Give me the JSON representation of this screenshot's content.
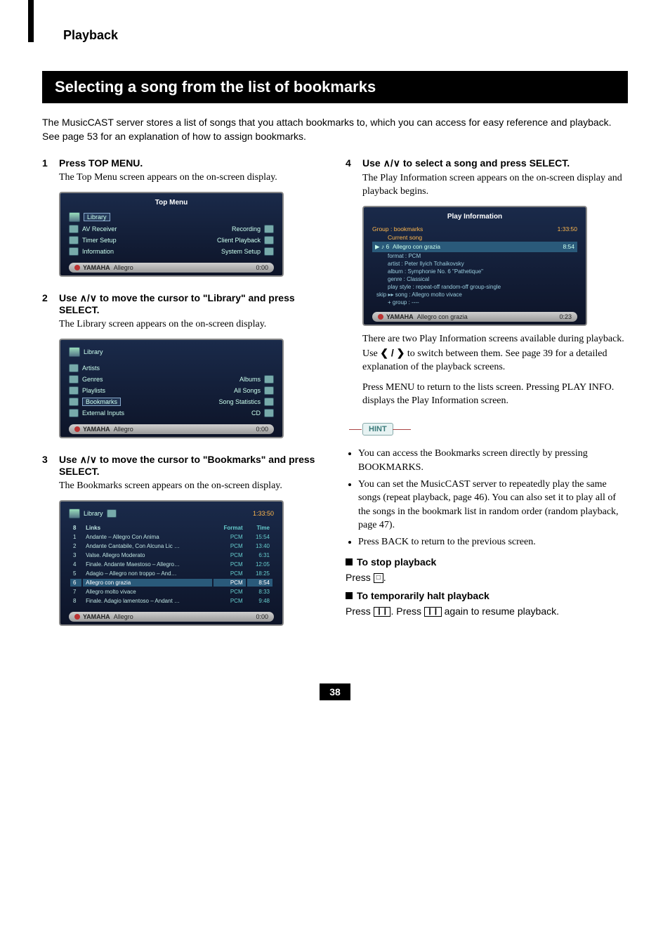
{
  "page": {
    "header": "Playback",
    "section_title": "Selecting a song from the list of bookmarks",
    "intro": "The MusicCAST server stores a list of songs that you attach bookmarks to, which you can access for easy reference and playback. See page 53 for an explanation of how to assign bookmarks.",
    "page_number": "38"
  },
  "steps": {
    "s1": {
      "num": "1",
      "title": "Press TOP MENU.",
      "desc": "The Top Menu screen appears on the on-screen display."
    },
    "s2": {
      "num": "2",
      "title_pre": "Use ",
      "title_post": " to move the cursor to \"Library\" and press SELECT.",
      "desc": "The Library screen appears on the on-screen display."
    },
    "s3": {
      "num": "3",
      "title_pre": "Use ",
      "title_post": " to move the cursor to \"Bookmarks\" and press SELECT.",
      "desc": "The Bookmarks screen appears on the on-screen display."
    },
    "s4": {
      "num": "4",
      "title_pre": "Use ",
      "title_post": " to select a song and press SELECT.",
      "desc": "The Play Information screen appears on the on-screen display and playback begins."
    }
  },
  "topmenu": {
    "title": "Top Menu",
    "left": [
      "Library",
      "AV Receiver",
      "Timer Setup",
      "Information"
    ],
    "right": [
      "Recording",
      "Client Playback",
      "System Setup"
    ],
    "status_brand": "YAMAHA",
    "status_track": "Allegro",
    "status_time": "0:00"
  },
  "library": {
    "title": "Library",
    "left": [
      "Artists",
      "Genres",
      "Playlists",
      "Bookmarks",
      "External Inputs"
    ],
    "right": [
      "Albums",
      "All Songs",
      "Song Statistics",
      "CD"
    ],
    "status_brand": "YAMAHA",
    "status_track": "Allegro",
    "status_time": "0:00"
  },
  "bookmarks": {
    "title": "Library",
    "clock": "1:33:50",
    "header_num": "8",
    "header_links": "Links",
    "header_format": "Format",
    "header_time": "Time",
    "rows": [
      {
        "n": "1",
        "t": "Andante – Allegro Con Anima",
        "f": "PCM",
        "d": "15:54"
      },
      {
        "n": "2",
        "t": "Andante Cantabile, Con Alcuna Lic …",
        "f": "PCM",
        "d": "13:40"
      },
      {
        "n": "3",
        "t": "Valse. Allegro Moderato",
        "f": "PCM",
        "d": "6:31"
      },
      {
        "n": "4",
        "t": "Finale. Andante Maestoso – Allegro…",
        "f": "PCM",
        "d": "12:05"
      },
      {
        "n": "5",
        "t": "Adagio – Allegro non troppo – And…",
        "f": "PCM",
        "d": "18:25"
      },
      {
        "n": "6",
        "t": "Allegro con grazia",
        "f": "PCM",
        "d": "8:54",
        "sel": true
      },
      {
        "n": "7",
        "t": "Allegro molto vivace",
        "f": "PCM",
        "d": "8:33"
      },
      {
        "n": "8",
        "t": "Finale. Adagio lamentoso – Andant …",
        "f": "PCM",
        "d": "9:48"
      }
    ],
    "status_brand": "YAMAHA",
    "status_track": "Allegro",
    "status_time": "0:00"
  },
  "playinfo": {
    "title": "Play Information",
    "group_label": "Group :",
    "group_value": "bookmarks",
    "clock": "1:33:50",
    "current_label": "Current song",
    "track_num": "6",
    "track_title": "Allegro con grazia",
    "track_time": "8:54",
    "format": "format : PCM",
    "artist": "artist : Peter Ilyich Tchaikovsky",
    "album": "album : Symphonie No. 6 \"Pathetique\"",
    "genre": "genre : Classical",
    "playstyle": "play style : repeat-off    random-off    group-single",
    "skip": "skip  ▸▸  song : Allegro molto vivace",
    "skip2": "+ group : ----",
    "status_brand": "YAMAHA",
    "status_track": "Allegro con grazia",
    "status_time": "0:23"
  },
  "right_text": {
    "para1a": "There are two Play Information screens available during playback. Use ",
    "para1b": " to switch between them. See page 39 for a detailed explanation of the playback screens.",
    "para2": "Press MENU to return to the lists screen. Pressing PLAY INFO. displays the Play Information screen.",
    "hint_label": "HINT",
    "bullets": [
      "You can access the Bookmarks screen directly by pressing BOOKMARKS.",
      "You can set the MusicCAST server to repeatedly play the same songs (repeat playback, page 46). You can also set it to play all of the songs in the bookmark list in random order (random playback, page 47).",
      "Press BACK to return to the previous screen."
    ],
    "stop_h": "To stop playback",
    "stop_body_a": "Press ",
    "stop_body_b": ".",
    "halt_h": "To temporarily halt playback",
    "halt_body_a": "Press ",
    "halt_body_b": ". Press ",
    "halt_body_c": " again to resume playback."
  },
  "glyphs": {
    "updown": "∧/∨",
    "leftright": "❮ / ❯",
    "stop": "□",
    "pause": "❙❙"
  }
}
